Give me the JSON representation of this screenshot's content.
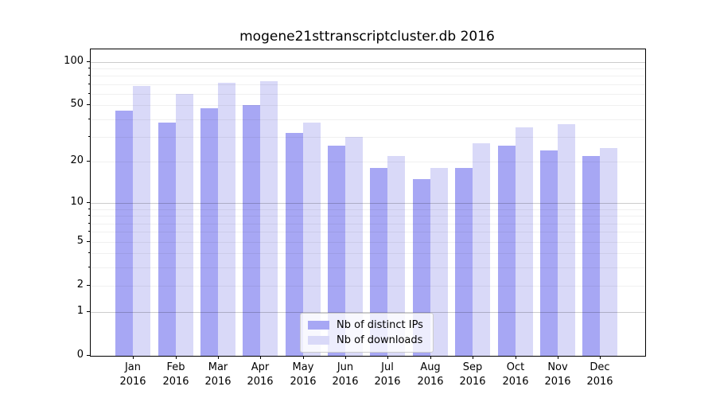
{
  "chart_data": {
    "type": "bar",
    "title": "mogene21sttranscriptcluster.db 2016",
    "scale": "log1p",
    "categories": [
      "Jan",
      "Feb",
      "Mar",
      "Apr",
      "May",
      "Jun",
      "Jul",
      "Aug",
      "Sep",
      "Oct",
      "Nov",
      "Dec"
    ],
    "year_label": "2016",
    "series": [
      {
        "name": "Nb of distinct IPs",
        "color": "#a7a7f4",
        "values": [
          46,
          38,
          48,
          50,
          32,
          26,
          18,
          15,
          18,
          26,
          24,
          22
        ]
      },
      {
        "name": "Nb of downloads",
        "color": "#d9d9f8",
        "values": [
          68,
          60,
          72,
          74,
          38,
          30,
          22,
          18,
          27,
          35,
          37,
          25
        ]
      }
    ],
    "ylim": [
      0,
      122
    ],
    "yticks": [
      0,
      1,
      2,
      5,
      10,
      20,
      50,
      100
    ],
    "yticks_minor": [
      3,
      4,
      6,
      7,
      8,
      9,
      30,
      40,
      60,
      70,
      80,
      90
    ],
    "grid_major": [
      1,
      10,
      100
    ],
    "grid_minor": [
      2,
      3,
      4,
      5,
      6,
      7,
      8,
      9,
      20,
      30,
      40,
      50,
      60,
      70,
      80,
      90
    ],
    "legend_position": "bottom-center",
    "grid": "on"
  },
  "colors": {
    "background": "#ffffff",
    "ips_bar": "#a7a7f4",
    "downloads_bar": "#d9d9f8",
    "spine": "#000000",
    "grid_major": "rgba(0,0,0,0.20)",
    "grid_minor": "rgba(0,0,0,0.06)",
    "legend_border": "#cccccc",
    "text": "#000000"
  }
}
